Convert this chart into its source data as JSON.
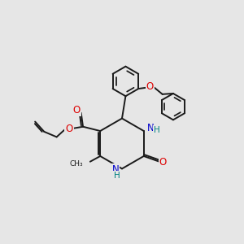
{
  "bg_color": "#e6e6e6",
  "bond_color": "#1a1a1a",
  "n_color": "#0000cc",
  "o_color": "#dd0000",
  "h_color": "#008080",
  "lw": 1.4,
  "figsize": [
    3.0,
    3.0
  ],
  "dpi": 100,
  "xlim": [
    0,
    10
  ],
  "ylim": [
    0,
    10
  ]
}
